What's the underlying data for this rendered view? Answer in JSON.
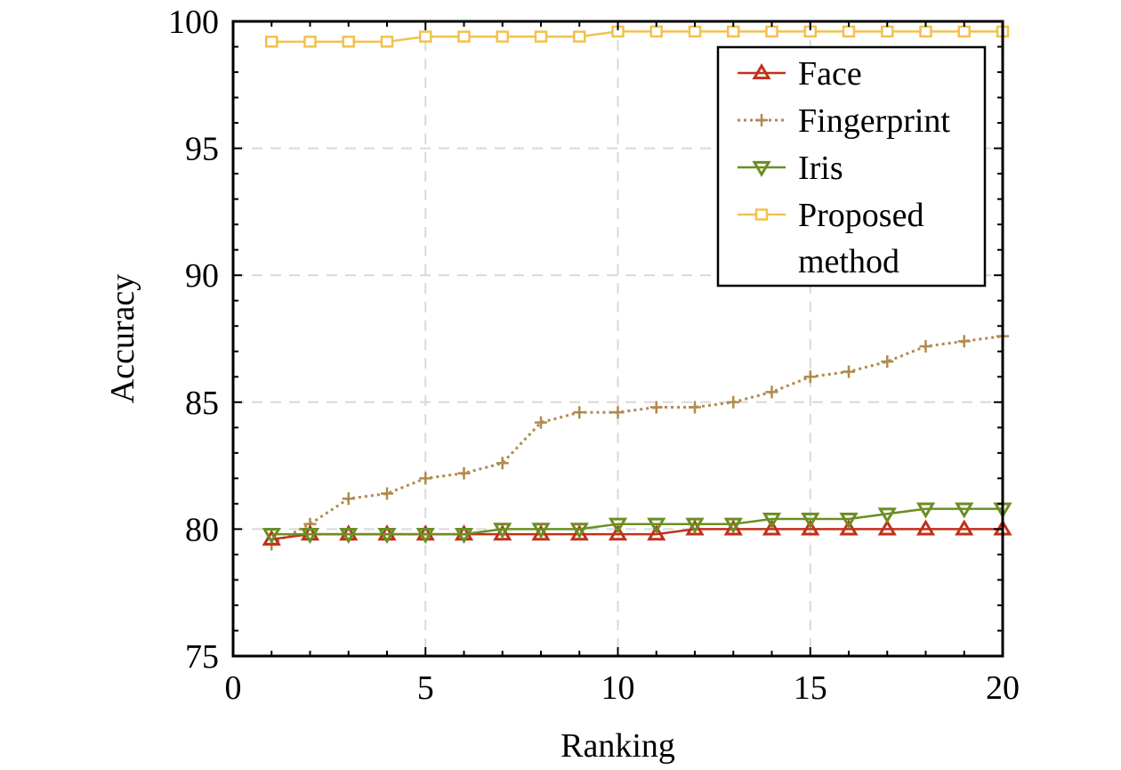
{
  "chart_data": {
    "type": "line",
    "title": "",
    "xlabel": "Ranking",
    "ylabel": "Accuracy",
    "xlim": [
      0,
      20
    ],
    "ylim": [
      75,
      100
    ],
    "xticks": [
      0,
      5,
      10,
      15,
      20
    ],
    "yticks": [
      75,
      80,
      85,
      90,
      95,
      100
    ],
    "grid": true,
    "legend_position": "top-right",
    "x": [
      1,
      2,
      3,
      4,
      5,
      6,
      7,
      8,
      9,
      10,
      11,
      12,
      13,
      14,
      15,
      16,
      17,
      18,
      19,
      20
    ],
    "series": [
      {
        "name": "Face",
        "color": "#c0311a",
        "marker": "triangle-up",
        "line_style": "solid",
        "values": [
          79.6,
          79.8,
          79.8,
          79.8,
          79.8,
          79.8,
          79.8,
          79.8,
          79.8,
          79.8,
          79.8,
          80.0,
          80.0,
          80.0,
          80.0,
          80.0,
          80.0,
          80.0,
          80.0,
          80.0
        ]
      },
      {
        "name": "Fingerprint",
        "color": "#b08a4e",
        "marker": "plus",
        "line_style": "dotted",
        "values": [
          79.4,
          80.2,
          81.2,
          81.4,
          82.0,
          82.2,
          82.6,
          84.2,
          84.6,
          84.6,
          84.8,
          84.8,
          85.0,
          85.4,
          86.0,
          86.2,
          86.6,
          87.2,
          87.4,
          87.6
        ]
      },
      {
        "name": "Iris",
        "color": "#6b8e23",
        "marker": "triangle-down",
        "line_style": "solid",
        "values": [
          79.8,
          79.8,
          79.8,
          79.8,
          79.8,
          79.8,
          80.0,
          80.0,
          80.0,
          80.2,
          80.2,
          80.2,
          80.2,
          80.4,
          80.4,
          80.4,
          80.6,
          80.8,
          80.8,
          80.8
        ]
      },
      {
        "name": "Proposed\nmethod",
        "color": "#f2c14e",
        "marker": "square",
        "line_style": "solid",
        "values": [
          99.2,
          99.2,
          99.2,
          99.2,
          99.4,
          99.4,
          99.4,
          99.4,
          99.4,
          99.6,
          99.6,
          99.6,
          99.6,
          99.6,
          99.6,
          99.6,
          99.6,
          99.6,
          99.6,
          99.6
        ]
      }
    ]
  }
}
